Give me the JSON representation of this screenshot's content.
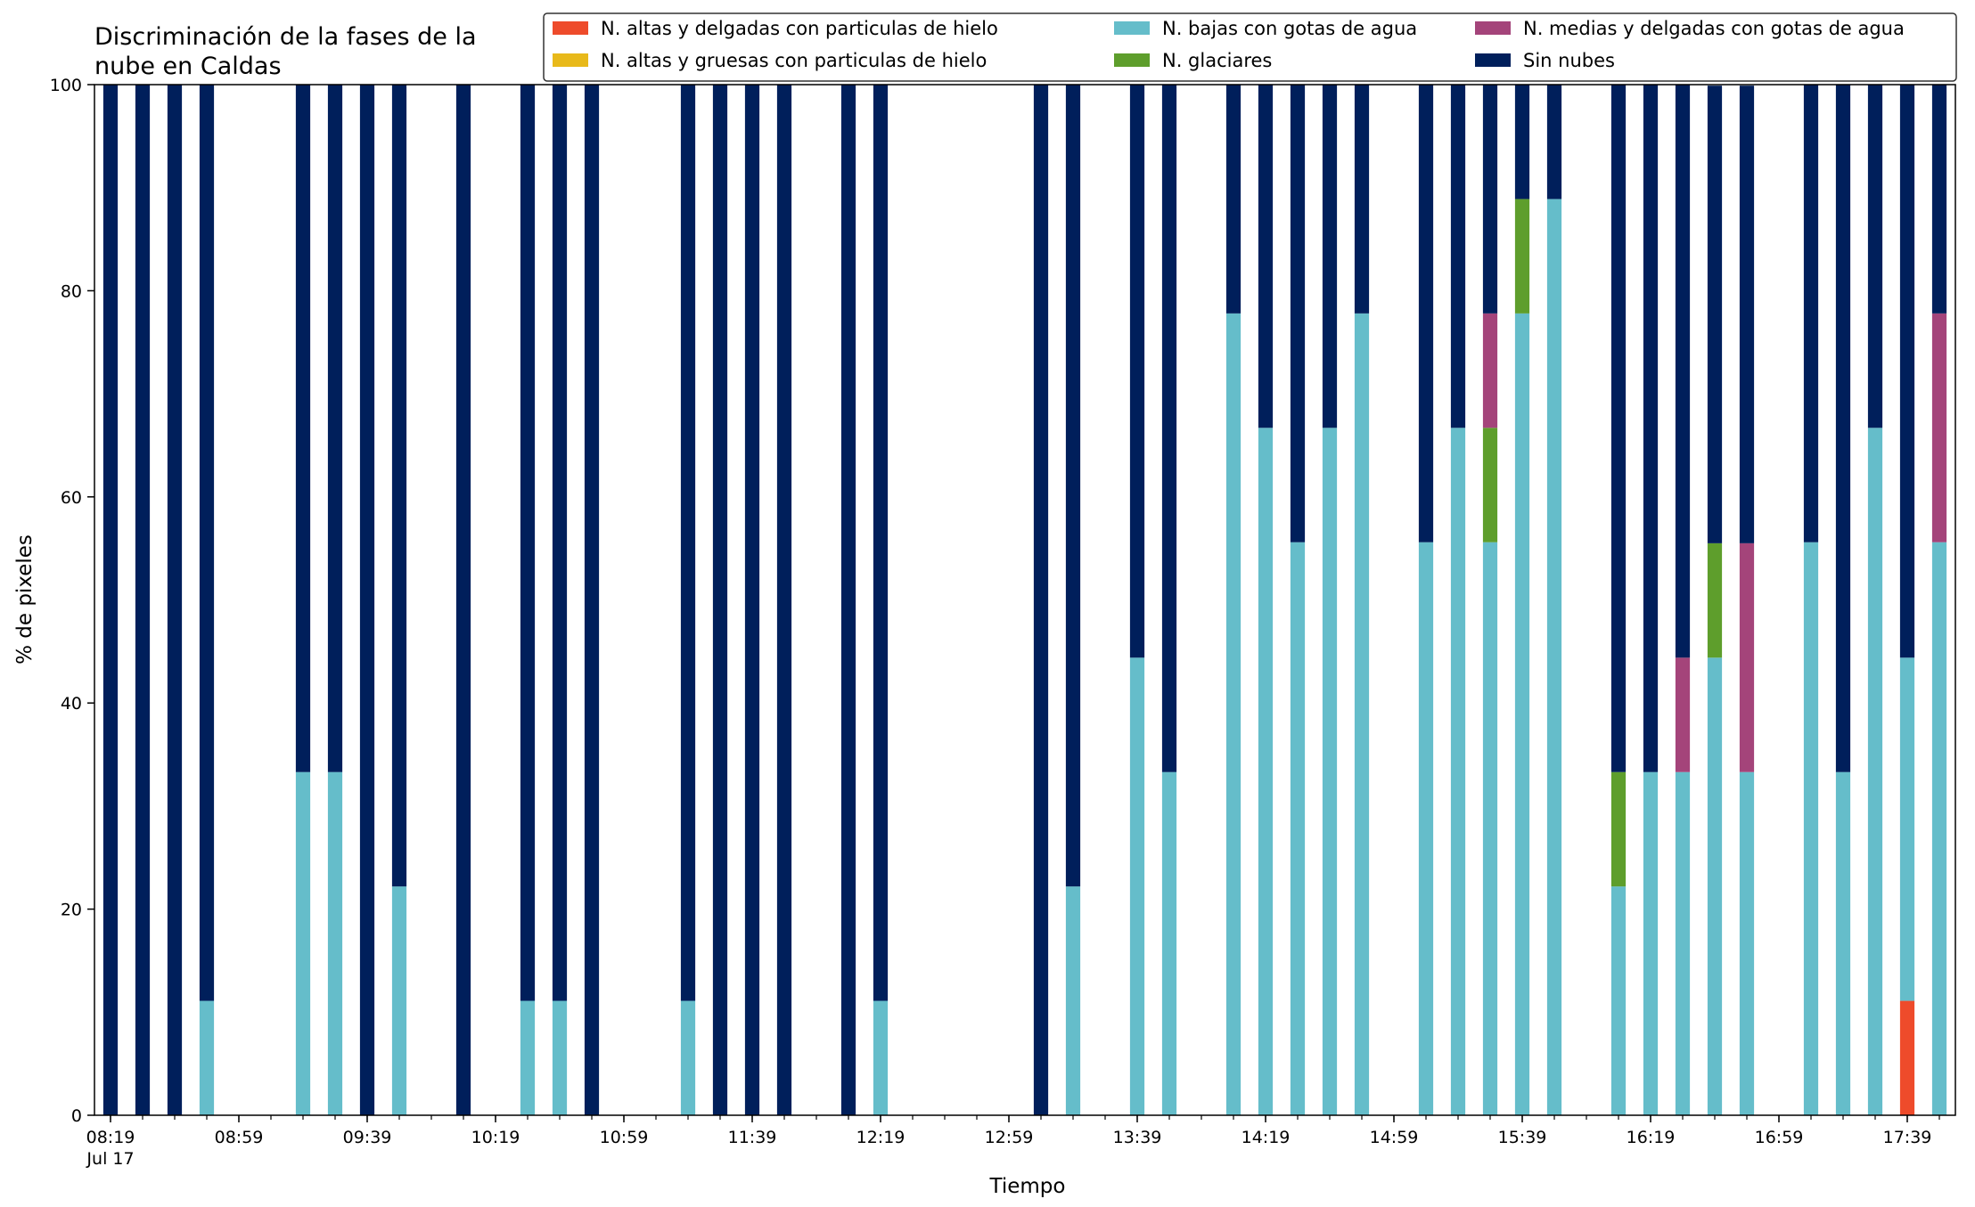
{
  "chart_data": {
    "type": "bar",
    "stacked": true,
    "title": "Discriminación de la fases de la nube en Caldas",
    "title_lines": [
      "Discriminación de la fases de la",
      "nube en Caldas"
    ],
    "xlabel": "Tiempo",
    "ylabel": "% de pixeles",
    "ylim": [
      0,
      100
    ],
    "yticks": [
      0,
      20,
      40,
      60,
      80,
      100
    ],
    "xlim": [
      "08:14",
      "17:54"
    ],
    "x_date_label": "Jul 17",
    "xticks_major": [
      "08:19",
      "08:59",
      "09:39",
      "10:19",
      "10:59",
      "11:39",
      "12:19",
      "12:59",
      "13:39",
      "14:19",
      "14:59",
      "15:39",
      "16:19",
      "16:59",
      "17:39"
    ],
    "xticks_minor_interval_minutes": 10,
    "bar_width_minutes": 4.5,
    "grid": false,
    "legend_placement": "top-right",
    "legend_columns": 3,
    "series": [
      {
        "name": "N. altas y delgadas con particulas de hielo",
        "color": "#ee4b2b"
      },
      {
        "name": "N. altas y gruesas con particulas de hielo",
        "color": "#e8b91a"
      },
      {
        "name": "N. bajas con gotas de agua",
        "color": "#65bdca"
      },
      {
        "name": "N. glaciares",
        "color": "#5e9e2c"
      },
      {
        "name": "N. medias y delgadas con gotas de agua",
        "color": "#a4447a"
      },
      {
        "name": "Sin nubes",
        "color": "#001f5b"
      }
    ],
    "x": [
      "08:19",
      "08:29",
      "08:39",
      "08:49",
      "09:19",
      "09:29",
      "09:39",
      "09:49",
      "10:09",
      "10:29",
      "10:39",
      "10:49",
      "11:19",
      "11:29",
      "11:39",
      "11:49",
      "12:09",
      "12:19",
      "13:09",
      "13:19",
      "13:39",
      "13:49",
      "14:09",
      "14:19",
      "14:29",
      "14:39",
      "14:49",
      "15:09",
      "15:19",
      "15:29",
      "15:39",
      "15:49",
      "16:09",
      "16:19",
      "16:29",
      "16:39",
      "16:49",
      "17:09",
      "17:19",
      "17:29",
      "17:39",
      "17:49"
    ],
    "values": [
      [
        0,
        0,
        0,
        0,
        0,
        100
      ],
      [
        0,
        0,
        0,
        0,
        0,
        100
      ],
      [
        0,
        0,
        0,
        0,
        0,
        100
      ],
      [
        0,
        0,
        11.1,
        0,
        0,
        88.9
      ],
      [
        0,
        0,
        33.3,
        0,
        0,
        66.7
      ],
      [
        0,
        0,
        33.3,
        0,
        0,
        66.7
      ],
      [
        0,
        0,
        0,
        0,
        0,
        100
      ],
      [
        0,
        0,
        22.2,
        0,
        0,
        77.8
      ],
      [
        0,
        0,
        0,
        0,
        0,
        100
      ],
      [
        0,
        0,
        11.1,
        0,
        0,
        88.9
      ],
      [
        0,
        0,
        11.1,
        0,
        0,
        88.9
      ],
      [
        0,
        0,
        0,
        0,
        0,
        100
      ],
      [
        0,
        0,
        11.1,
        0,
        0,
        88.9
      ],
      [
        0,
        0,
        0,
        0,
        0,
        100
      ],
      [
        0,
        0,
        0,
        0,
        0,
        100
      ],
      [
        0,
        0,
        0,
        0,
        0,
        100
      ],
      [
        0,
        0,
        0,
        0,
        0,
        100
      ],
      [
        0,
        0,
        11.1,
        0,
        0,
        88.9
      ],
      [
        0,
        0,
        0,
        0,
        0,
        100
      ],
      [
        0,
        0,
        22.2,
        0,
        0,
        77.8
      ],
      [
        0,
        0,
        44.4,
        0,
        0,
        55.6
      ],
      [
        0,
        0,
        33.3,
        0,
        0,
        66.7
      ],
      [
        0,
        0,
        77.8,
        0,
        0,
        22.2
      ],
      [
        0,
        0,
        66.7,
        0,
        0,
        33.3
      ],
      [
        0,
        0,
        55.6,
        0,
        0,
        44.4
      ],
      [
        0,
        0,
        66.7,
        0,
        0,
        33.3
      ],
      [
        0,
        0,
        77.8,
        0,
        0,
        22.2
      ],
      [
        0,
        0,
        55.6,
        0,
        0,
        44.4
      ],
      [
        0,
        0,
        66.7,
        0,
        0,
        33.3
      ],
      [
        0,
        0,
        55.6,
        11.1,
        11.1,
        22.2
      ],
      [
        0,
        0,
        77.8,
        11.1,
        0,
        11.1
      ],
      [
        0,
        0,
        88.9,
        0,
        0,
        11.1
      ],
      [
        0,
        0,
        22.2,
        11.1,
        0,
        66.7
      ],
      [
        0,
        0,
        33.3,
        0,
        0,
        66.7
      ],
      [
        0,
        0,
        33.3,
        0,
        11.1,
        55.6
      ],
      [
        0,
        0,
        44.4,
        11.1,
        0,
        44.4
      ],
      [
        0,
        0,
        33.3,
        0,
        22.2,
        44.4
      ],
      [
        0,
        0,
        55.6,
        0,
        0,
        44.4
      ],
      [
        0,
        0,
        33.3,
        0,
        0,
        66.7
      ],
      [
        0,
        0,
        66.7,
        0,
        0,
        33.3
      ],
      [
        11.1,
        0,
        33.3,
        0,
        0,
        55.6
      ],
      [
        0,
        0,
        55.6,
        0,
        22.2,
        22.2
      ]
    ]
  }
}
